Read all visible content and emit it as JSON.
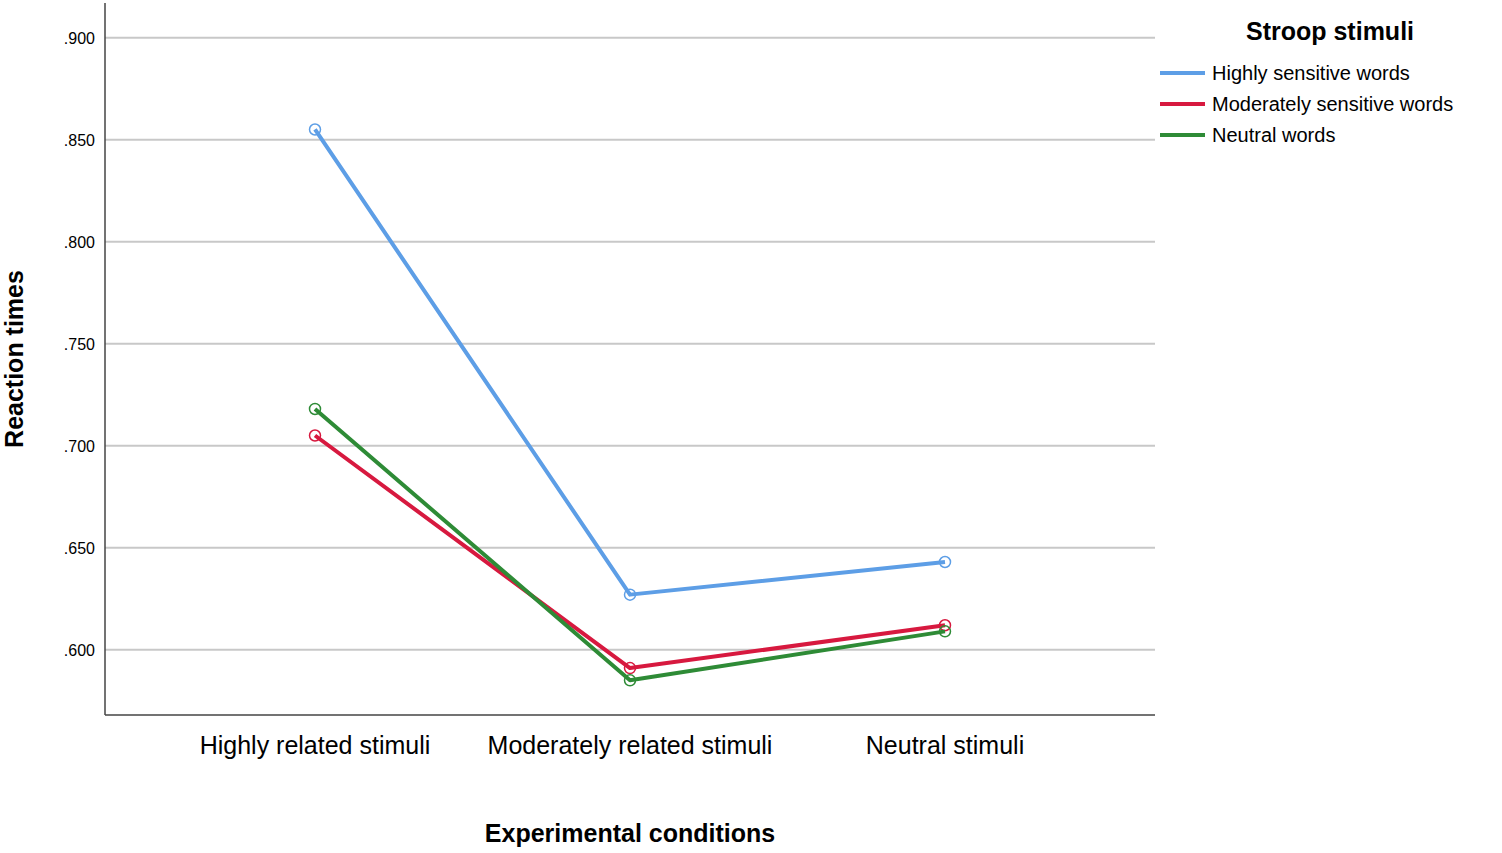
{
  "chart_data": {
    "type": "line",
    "x_label": "Experimental conditions",
    "y_label": "Reaction times",
    "categories": [
      "Highly related stimuli",
      "Moderately related stimuli",
      "Neutral stimuli"
    ],
    "series": [
      {
        "name": "Highly sensitive words",
        "color": "#5d9ee6",
        "values": [
          0.855,
          0.627,
          0.643
        ]
      },
      {
        "name": "Moderately sensitive words",
        "color": "#d7193f",
        "values": [
          0.705,
          0.591,
          0.612
        ]
      },
      {
        "name": "Neutral words",
        "color": "#2e8b36",
        "values": [
          0.718,
          0.585,
          0.609
        ]
      }
    ],
    "legend_title": "Stroop stimuli",
    "legend": "right",
    "marker": "circle",
    "grid": true,
    "ylim": [
      0.568,
      0.917
    ],
    "yticks": [
      {
        "value": 0.6,
        "label": ".600"
      },
      {
        "value": 0.65,
        "label": ".650"
      },
      {
        "value": 0.7,
        "label": ".700"
      },
      {
        "value": 0.75,
        "label": ".750"
      },
      {
        "value": 0.8,
        "label": ".800"
      },
      {
        "value": 0.85,
        "label": ".850"
      },
      {
        "value": 0.9,
        "label": ".900"
      }
    ]
  }
}
